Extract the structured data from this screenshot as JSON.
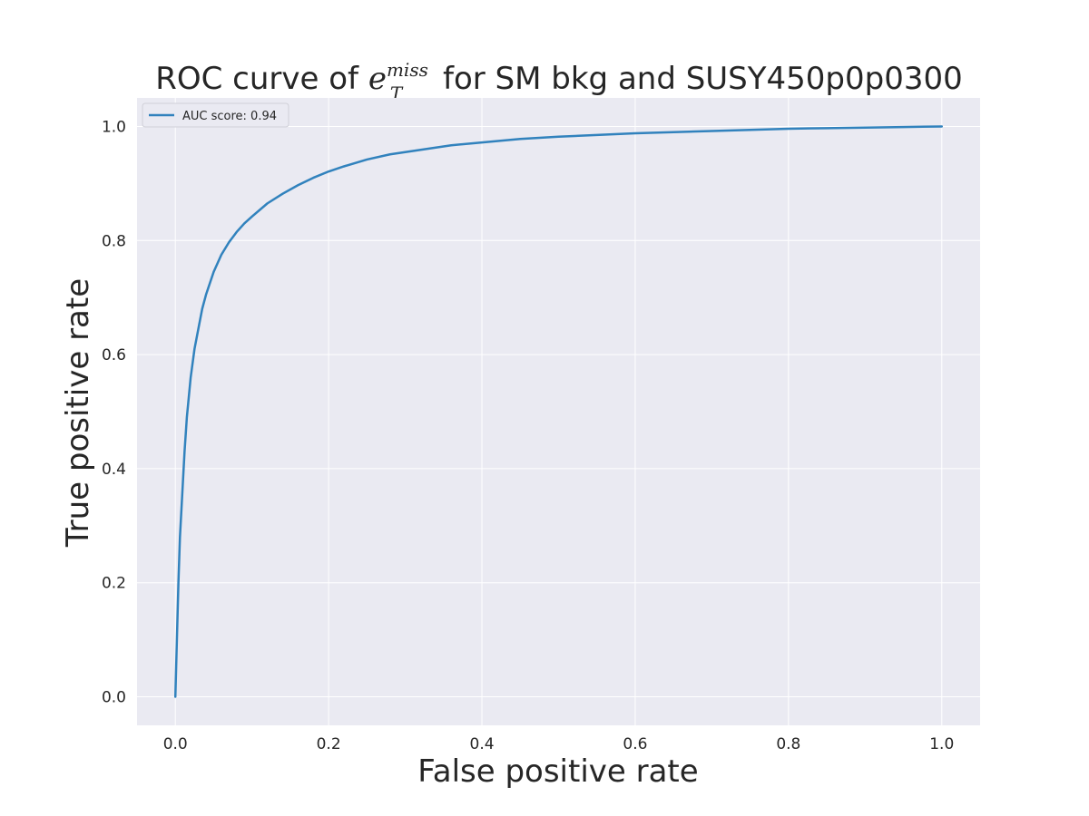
{
  "chart_data": {
    "type": "line",
    "title_prefix": "ROC curve of ",
    "title_math_base": "e",
    "title_math_sub": "T",
    "title_math_sup": "miss",
    "title_suffix": " for SM bkg and SUSY450p0p0300",
    "xlabel": "False positive rate",
    "ylabel": "True positive rate",
    "xlim": [
      -0.05,
      1.05
    ],
    "ylim": [
      -0.05,
      1.05
    ],
    "xticks": [
      0.0,
      0.2,
      0.4,
      0.6,
      0.8,
      1.0
    ],
    "yticks": [
      0.0,
      0.2,
      0.4,
      0.6,
      0.8,
      1.0
    ],
    "xtick_labels": [
      "0.0",
      "0.2",
      "0.4",
      "0.6",
      "0.8",
      "1.0"
    ],
    "ytick_labels": [
      "0.0",
      "0.2",
      "0.4",
      "0.6",
      "0.8",
      "1.0"
    ],
    "grid": true,
    "legend_placement": "upper-left",
    "background_color": "#eaeaf2",
    "grid_color": "#ffffff",
    "series": [
      {
        "name": "AUC score: 0.94",
        "color": "#3182bd",
        "x": [
          0.0,
          0.002,
          0.004,
          0.006,
          0.008,
          0.01,
          0.012,
          0.015,
          0.02,
          0.025,
          0.03,
          0.035,
          0.04,
          0.05,
          0.06,
          0.07,
          0.08,
          0.09,
          0.1,
          0.12,
          0.14,
          0.16,
          0.18,
          0.2,
          0.22,
          0.25,
          0.28,
          0.3,
          0.33,
          0.36,
          0.4,
          0.45,
          0.5,
          0.55,
          0.6,
          0.65,
          0.7,
          0.75,
          0.8,
          0.85,
          0.9,
          0.95,
          1.0
        ],
        "y": [
          0.0,
          0.1,
          0.2,
          0.28,
          0.33,
          0.38,
          0.43,
          0.49,
          0.56,
          0.61,
          0.645,
          0.68,
          0.705,
          0.745,
          0.775,
          0.797,
          0.815,
          0.83,
          0.842,
          0.865,
          0.882,
          0.897,
          0.91,
          0.921,
          0.93,
          0.942,
          0.951,
          0.955,
          0.961,
          0.967,
          0.972,
          0.978,
          0.982,
          0.985,
          0.988,
          0.99,
          0.992,
          0.994,
          0.996,
          0.997,
          0.998,
          0.999,
          1.0
        ]
      }
    ]
  }
}
